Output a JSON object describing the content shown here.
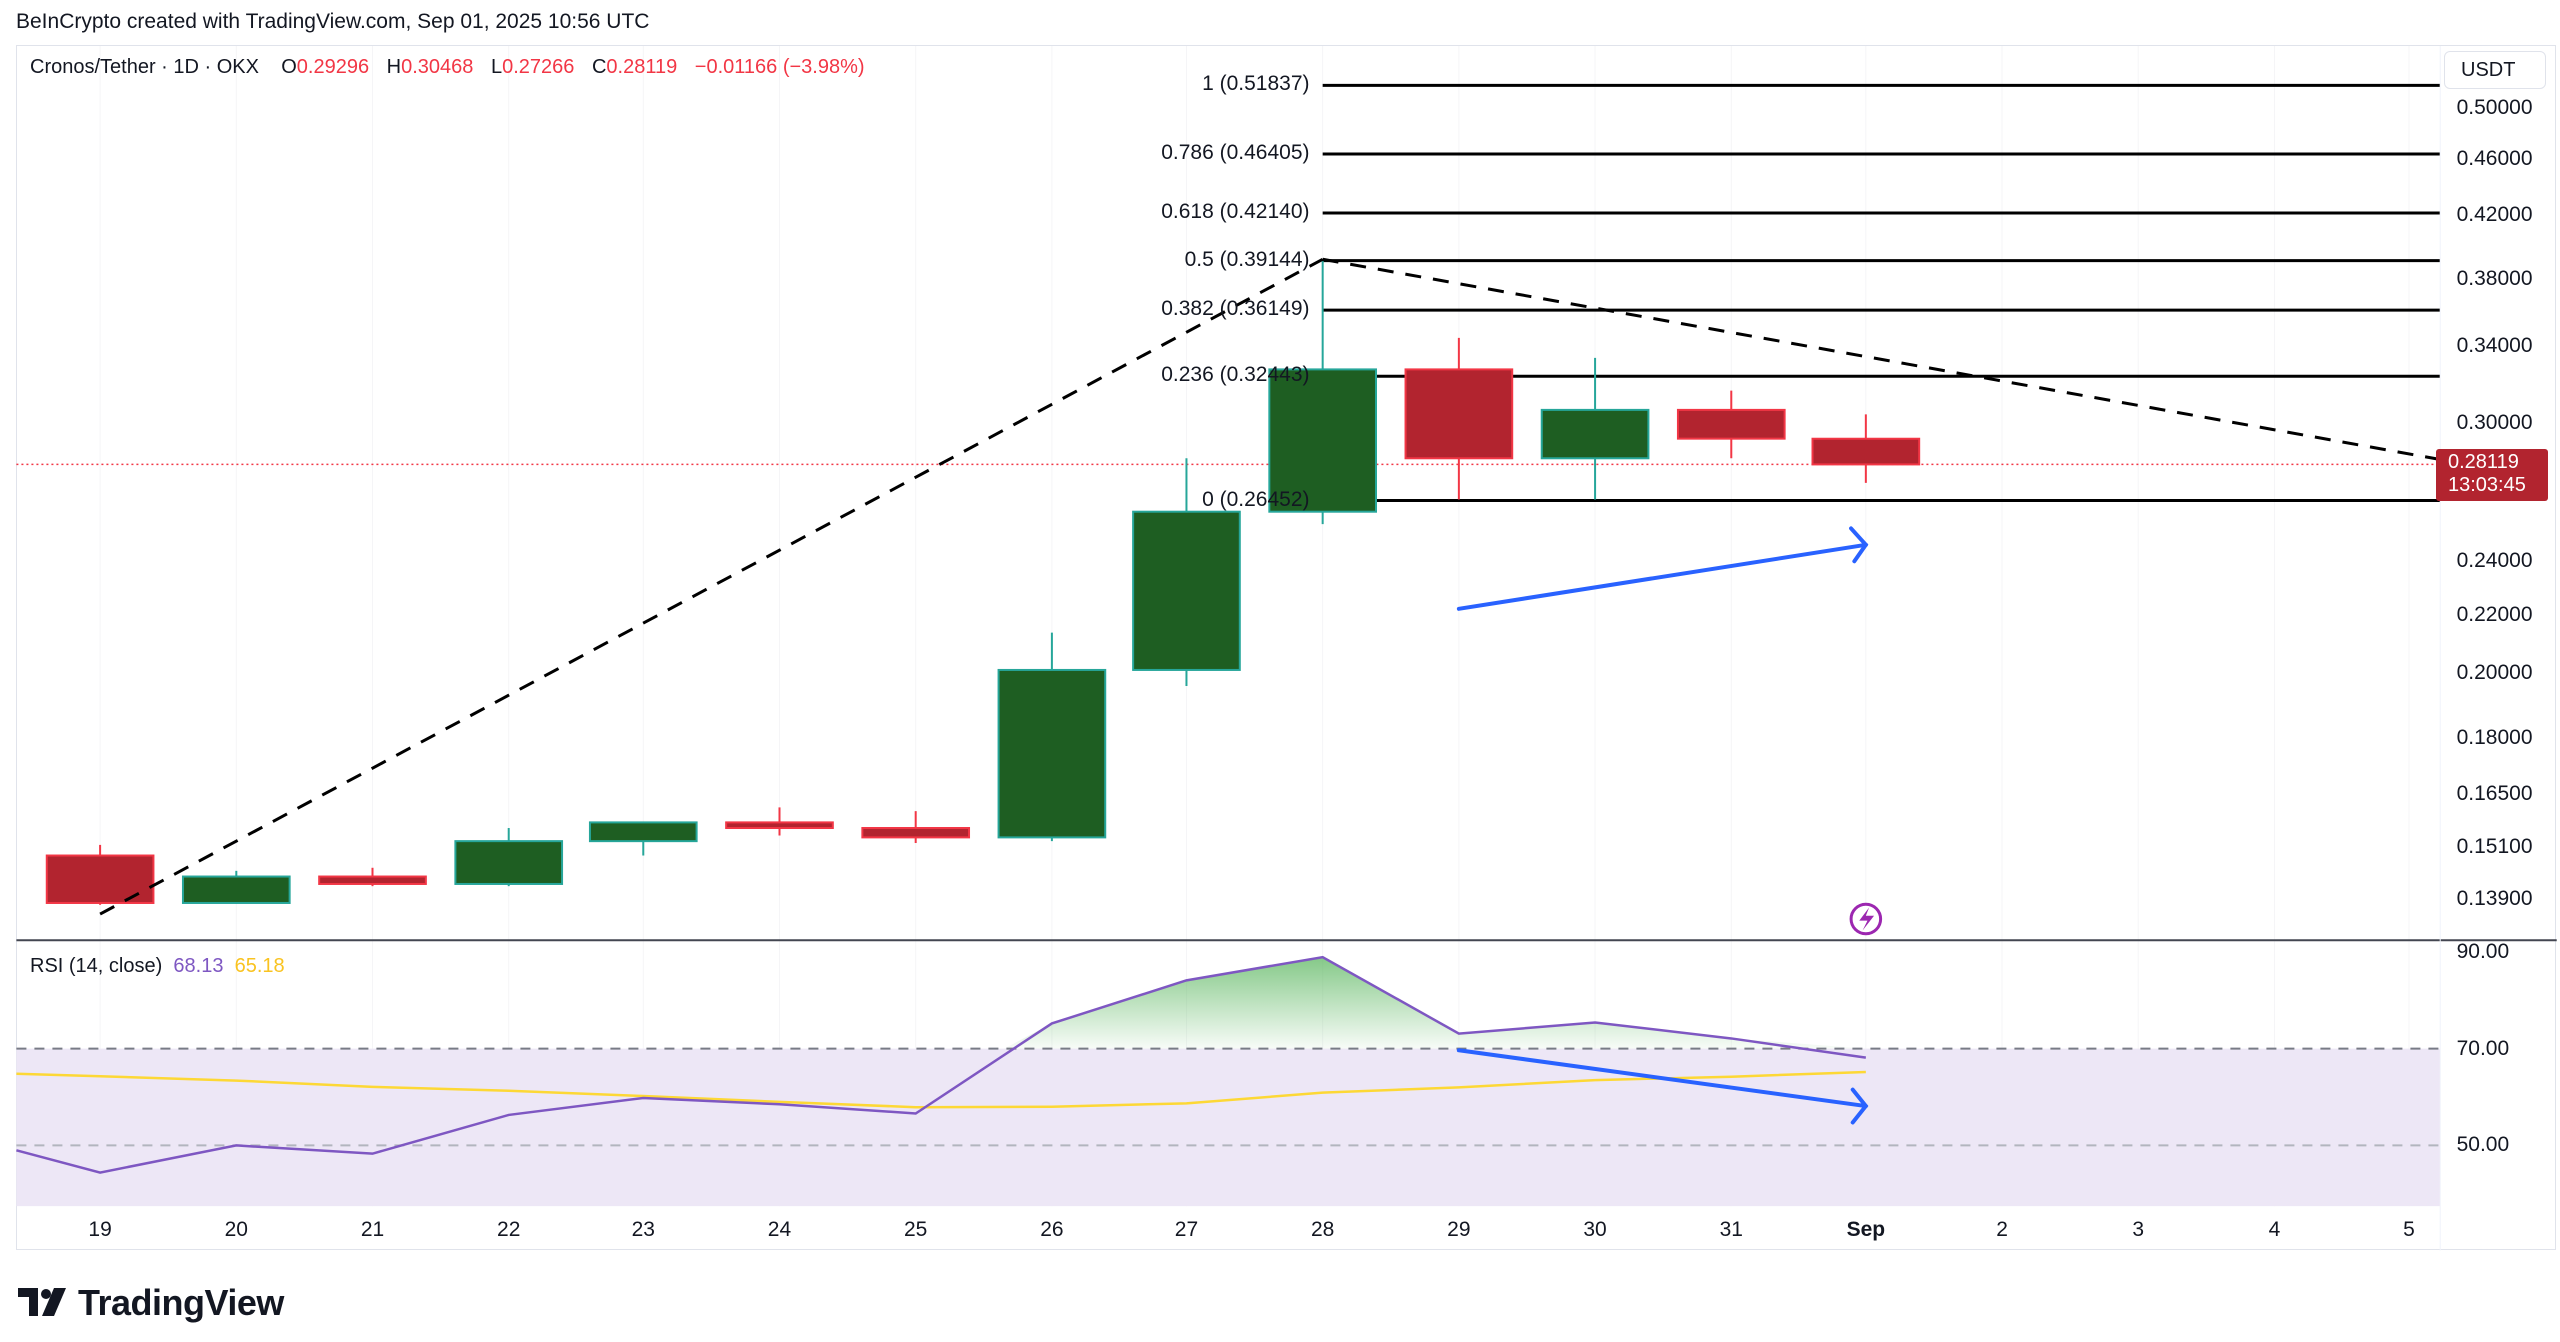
{
  "header": {
    "credit": "BeInCrypto created with TradingView.com, Sep 01, 2025 10:56 UTC"
  },
  "legend": {
    "symbol": "Cronos/Tether · 1D · OKX",
    "open_label": "O",
    "open": "0.29296",
    "high_label": "H",
    "high": "0.30468",
    "low_label": "L",
    "low": "0.27266",
    "close_label": "C",
    "close": "0.28119",
    "change": "−0.01166 (−3.98%)"
  },
  "price_axis": {
    "currency": "USDT",
    "current_price": "0.28119",
    "countdown": "13:03:45"
  },
  "rsi_legend": {
    "title": "RSI (14, close)",
    "rsi_value": "68.13",
    "ma_value": "65.18"
  },
  "branding": {
    "logo_text": "TradingView"
  },
  "colors": {
    "up": "#1e5e22",
    "up_border": "#26a69a",
    "down": "#b2242f",
    "down_border": "#f23645",
    "rsi_line": "#7e57c2",
    "rsi_ma": "#fdd835",
    "annotation_arrow": "#2962ff",
    "fib_line": "#000000",
    "rsi_band": "#ede7f6",
    "event_icon": "#9c27b0"
  },
  "chart_data": [
    {
      "type": "candlestick",
      "title": "Cronos/Tether · 1D · OKX",
      "ylabel": "USDT",
      "x": [
        "19",
        "20",
        "21",
        "22",
        "23",
        "24",
        "25",
        "26",
        "27",
        "28",
        "29",
        "30",
        "31",
        "Sep",
        "2",
        "3",
        "4",
        "5"
      ],
      "y_ticks": [
        "0.50000",
        "0.46000",
        "0.42000",
        "0.38000",
        "0.34000",
        "0.30000",
        "0.24000",
        "0.22000",
        "0.20000",
        "0.18000",
        "0.16500",
        "0.15100",
        "0.13900"
      ],
      "ohlc": [
        {
          "date": "19",
          "open": 0.149,
          "high": 0.1515,
          "low": 0.1375,
          "close": 0.138
        },
        {
          "date": "20",
          "open": 0.138,
          "high": 0.1455,
          "low": 0.1378,
          "close": 0.1442
        },
        {
          "date": "21",
          "open": 0.1442,
          "high": 0.1462,
          "low": 0.142,
          "close": 0.1425
        },
        {
          "date": "22",
          "open": 0.1425,
          "high": 0.156,
          "low": 0.142,
          "close": 0.1525
        },
        {
          "date": "23",
          "open": 0.1525,
          "high": 0.1575,
          "low": 0.149,
          "close": 0.1575
        },
        {
          "date": "24",
          "open": 0.1575,
          "high": 0.1615,
          "low": 0.154,
          "close": 0.156
        },
        {
          "date": "25",
          "open": 0.156,
          "high": 0.1605,
          "low": 0.152,
          "close": 0.1535
        },
        {
          "date": "26",
          "open": 0.1535,
          "high": 0.214,
          "low": 0.1525,
          "close": 0.201
        },
        {
          "date": "27",
          "open": 0.201,
          "high": 0.284,
          "low": 0.196,
          "close": 0.26
        },
        {
          "date": "28",
          "open": 0.26,
          "high": 0.3914,
          "low": 0.255,
          "close": 0.328
        },
        {
          "date": "29",
          "open": 0.328,
          "high": 0.345,
          "low": 0.265,
          "close": 0.284
        },
        {
          "date": "30",
          "open": 0.284,
          "high": 0.334,
          "low": 0.265,
          "close": 0.307
        },
        {
          "date": "31",
          "open": 0.307,
          "high": 0.317,
          "low": 0.284,
          "close": 0.293
        },
        {
          "date": "Sep",
          "open": 0.29296,
          "high": 0.30468,
          "low": 0.27266,
          "close": 0.28119
        }
      ],
      "fibonacci": [
        {
          "level": "1",
          "price": "0.51837",
          "label": "1 (0.51837)"
        },
        {
          "level": "0.786",
          "price": "0.46405",
          "label": "0.786 (0.46405)"
        },
        {
          "level": "0.618",
          "price": "0.42140",
          "label": "0.618 (0.42140)"
        },
        {
          "level": "0.5",
          "price": "0.39144",
          "label": "0.5 (0.39144)"
        },
        {
          "level": "0.382",
          "price": "0.36149",
          "label": "0.382 (0.36149)"
        },
        {
          "level": "0.236",
          "price": "0.32443",
          "label": "0.236 (0.32443)"
        },
        {
          "level": "0",
          "price": "0.26452",
          "label": "0 (0.26452)"
        }
      ],
      "annotations": [
        "dashed trend line from Aug 19 low to Aug 28 high",
        "dashed trend line from Aug 28 high descending to right edge",
        "blue arrow pointing up-right (price higher lows)"
      ]
    },
    {
      "type": "line",
      "title": "RSI (14, close)",
      "x": [
        "19",
        "20",
        "21",
        "22",
        "23",
        "24",
        "25",
        "26",
        "27",
        "28",
        "29",
        "30",
        "31",
        "Sep"
      ],
      "series": [
        {
          "name": "RSI",
          "color": "#7e57c2",
          "values": [
            44.4,
            50.0,
            48.3,
            56.3,
            59.8,
            58.5,
            56.6,
            75.2,
            84.1,
            88.9,
            73.1,
            75.4,
            72.1,
            68.13
          ]
        },
        {
          "name": "RSI-based MA",
          "color": "#fdd835",
          "values": [
            64.3,
            63.4,
            62.1,
            61.3,
            60.2,
            59.0,
            57.9,
            58.0,
            58.7,
            60.9,
            62.0,
            63.5,
            64.2,
            65.18
          ]
        }
      ],
      "y_ticks": [
        "90.00",
        "70.00",
        "50.00"
      ],
      "bands": {
        "upper": 70,
        "middle": 50,
        "lower": 30
      },
      "annotations": [
        "blue arrow pointing down-right (lower highs — bearish divergence)"
      ]
    }
  ]
}
